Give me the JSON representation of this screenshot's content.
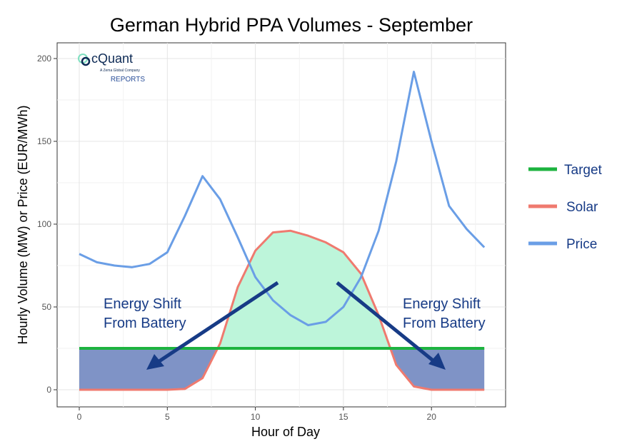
{
  "chart_data": {
    "type": "line",
    "title": "German Hybrid PPA Volumes - September",
    "xlabel": "Hour of Day",
    "ylabel": "Hourly Volume (MW) or Price (EUR/MWh)",
    "xlim": [
      0,
      23
    ],
    "ylim": [
      0,
      200
    ],
    "xticks": [
      0,
      5,
      10,
      15,
      20
    ],
    "yticks": [
      0,
      50,
      100,
      150,
      200
    ],
    "grid": true,
    "legend_position": "right",
    "x": [
      0,
      1,
      2,
      3,
      4,
      5,
      6,
      7,
      8,
      9,
      10,
      11,
      12,
      13,
      14,
      15,
      16,
      17,
      18,
      19,
      20,
      21,
      22,
      23
    ],
    "series": [
      {
        "name": "Target",
        "color": "#1db33f",
        "values": [
          25,
          25,
          25,
          25,
          25,
          25,
          25,
          25,
          25,
          25,
          25,
          25,
          25,
          25,
          25,
          25,
          25,
          25,
          25,
          25,
          25,
          25,
          25,
          25
        ]
      },
      {
        "name": "Solar",
        "color": "#ef7a6f",
        "values": [
          0,
          0,
          0,
          0,
          0,
          0,
          0.5,
          7,
          28,
          62,
          84,
          95,
          96,
          93,
          89,
          83,
          70,
          45,
          15,
          2,
          0,
          0,
          0,
          0
        ]
      },
      {
        "name": "Price",
        "color": "#6a9ee6",
        "values": [
          82,
          77,
          75,
          74,
          76,
          83,
          105,
          129,
          115,
          92,
          68,
          54,
          45,
          39,
          41,
          50,
          68,
          96,
          138,
          192,
          150,
          111,
          97,
          86
        ]
      }
    ],
    "annotations": [
      {
        "text_lines": [
          "Energy Shift",
          "From Battery"
        ],
        "side": "left"
      },
      {
        "text_lines": [
          "Energy Shift",
          "From Battery"
        ],
        "side": "right"
      }
    ],
    "colors": {
      "surplus_fill": "#bdf5da",
      "battery_fill": "#7f93c6",
      "arrow": "#173b86",
      "annotation_text": "#173b86"
    }
  },
  "logo": {
    "name": "cQuant",
    "tagline": "A Zema Global Company",
    "sub": "REPORTS"
  }
}
